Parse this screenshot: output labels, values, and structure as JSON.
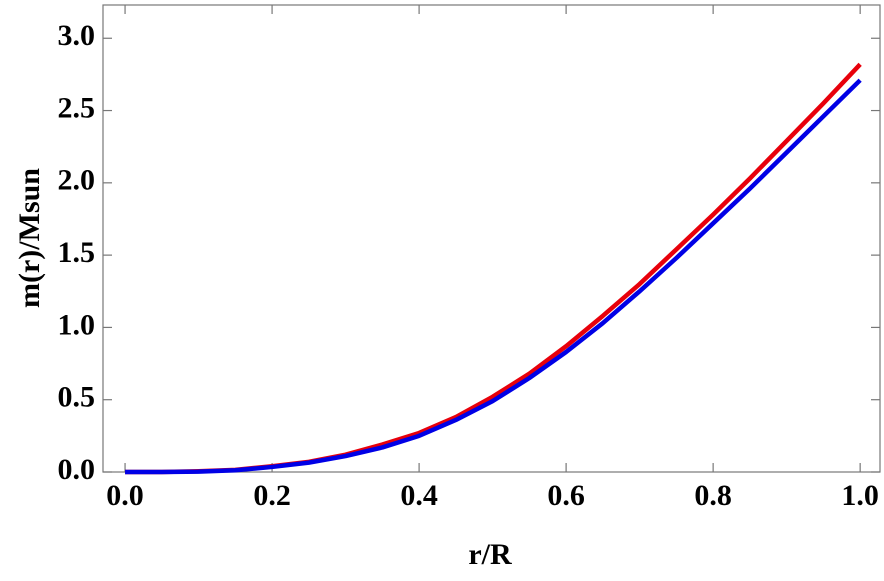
{
  "chart_data": {
    "type": "line",
    "xlabel": "r/R",
    "ylabel": "m(r)/Msun",
    "x": [
      0,
      0.05,
      0.1,
      0.15,
      0.2,
      0.25,
      0.3,
      0.35,
      0.4,
      0.45,
      0.5,
      0.55,
      0.6,
      0.65,
      0.7,
      0.75,
      0.8,
      0.85,
      0.9,
      0.95,
      1.0
    ],
    "series": [
      {
        "color": "#e8000b",
        "values": [
          0,
          0,
          0.005,
          0.015,
          0.04,
          0.07,
          0.12,
          0.19,
          0.27,
          0.38,
          0.52,
          0.68,
          0.87,
          1.08,
          1.3,
          1.54,
          1.78,
          2.03,
          2.29,
          2.55,
          2.82
        ]
      },
      {
        "color": "#0000e6",
        "values": [
          0,
          0,
          0.003,
          0.012,
          0.035,
          0.065,
          0.11,
          0.17,
          0.25,
          0.36,
          0.49,
          0.65,
          0.83,
          1.03,
          1.25,
          1.48,
          1.72,
          1.96,
          2.21,
          2.46,
          2.71
        ]
      }
    ],
    "xlim": [
      -0.03,
      1.027
    ],
    "ylim": [
      0,
      3.23
    ],
    "xticks": [
      {
        "value": 0,
        "label": "0.0"
      },
      0.2,
      0.4,
      0.6,
      0.8,
      {
        "value": 1,
        "label": "1.0"
      }
    ],
    "yticks": [
      {
        "value": 0,
        "label": "0.0"
      },
      0.5,
      {
        "value": 1,
        "label": "1.0"
      },
      1.5,
      {
        "value": 2,
        "label": "2.0"
      },
      2.5,
      {
        "value": 3,
        "label": "3.0"
      }
    ]
  }
}
